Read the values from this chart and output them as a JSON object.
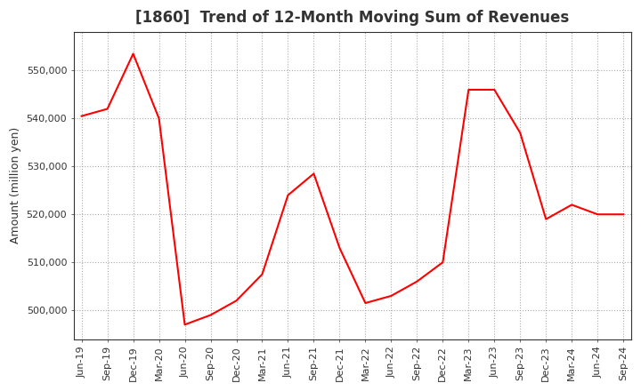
{
  "title": "[1860]  Trend of 12-Month Moving Sum of Revenues",
  "ylabel": "Amount (million yen)",
  "line_color": "#FF0000",
  "background_color": "#FFFFFF",
  "grid_color": "#AAAAAA",
  "ylim": [
    494000,
    558000
  ],
  "yticks": [
    500000,
    510000,
    520000,
    530000,
    540000,
    550000
  ],
  "labels": [
    "Jun-19",
    "Sep-19",
    "Dec-19",
    "Mar-20",
    "Jun-20",
    "Sep-20",
    "Dec-20",
    "Mar-21",
    "Jun-21",
    "Sep-21",
    "Dec-21",
    "Mar-22",
    "Jun-22",
    "Sep-22",
    "Dec-22",
    "Mar-23",
    "Jun-23",
    "Sep-23",
    "Dec-23",
    "Mar-24",
    "Jun-24",
    "Sep-24"
  ],
  "values": [
    540500,
    542000,
    553500,
    540000,
    497000,
    499000,
    502000,
    507500,
    524000,
    528500,
    513000,
    501500,
    503000,
    506000,
    510000,
    546000,
    546000,
    537000,
    519000,
    522000,
    520000,
    520000
  ],
  "title_color": "#333333",
  "tick_label_color": "#333333",
  "spine_color": "#333333",
  "title_fontsize": 12,
  "ylabel_fontsize": 9,
  "tick_fontsize": 8
}
